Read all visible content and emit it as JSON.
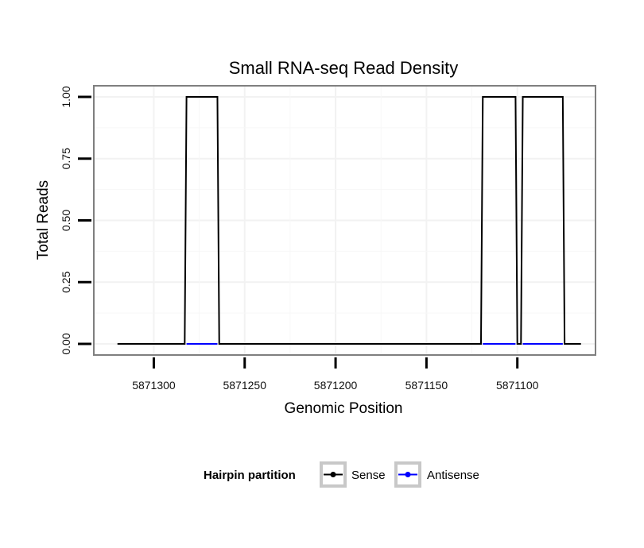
{
  "chart_data": {
    "type": "line",
    "title": "Small RNA-seq Read Density",
    "xlabel": "Genomic Position",
    "ylabel": "Total Reads",
    "x_reversed": true,
    "xlim": [
      5871333,
      5871057
    ],
    "ylim": [
      -0.045,
      1.045
    ],
    "x_ticks": [
      5871300,
      5871250,
      5871200,
      5871150,
      5871100
    ],
    "x_tick_labels": [
      "5871300",
      "5871250",
      "5871200",
      "5871150",
      "5871100"
    ],
    "y_ticks": [
      0,
      0.25,
      0.5,
      0.75,
      1.0
    ],
    "y_tick_labels": [
      "0.00",
      "0.25",
      "0.50",
      "0.75",
      "1.00"
    ],
    "grid": true,
    "legend": {
      "title": "Hairpin partition",
      "position": "bottom",
      "entries": [
        {
          "label": "Sense",
          "color": "#000000"
        },
        {
          "label": "Antisense",
          "color": "#0000ff"
        }
      ]
    },
    "series": [
      {
        "name": "Sense",
        "color": "#000000",
        "x": [
          5871320,
          5871283,
          5871282,
          5871265,
          5871264,
          5871120,
          5871119,
          5871101,
          5871100,
          5871098,
          5871097,
          5871075,
          5871074,
          5871065
        ],
        "y": [
          0,
          0,
          1,
          1,
          0,
          0,
          1,
          1,
          0,
          0,
          1,
          1,
          0,
          0
        ]
      },
      {
        "name": "Antisense",
        "color": "#0000ff",
        "x": [
          5871282,
          5871265,
          5871119,
          5871101,
          5871097,
          5871075
        ],
        "y": [
          0,
          0,
          0,
          0,
          0,
          0
        ],
        "segments": [
          [
            0,
            1
          ],
          [
            2,
            3
          ],
          [
            4,
            5
          ]
        ]
      }
    ]
  }
}
